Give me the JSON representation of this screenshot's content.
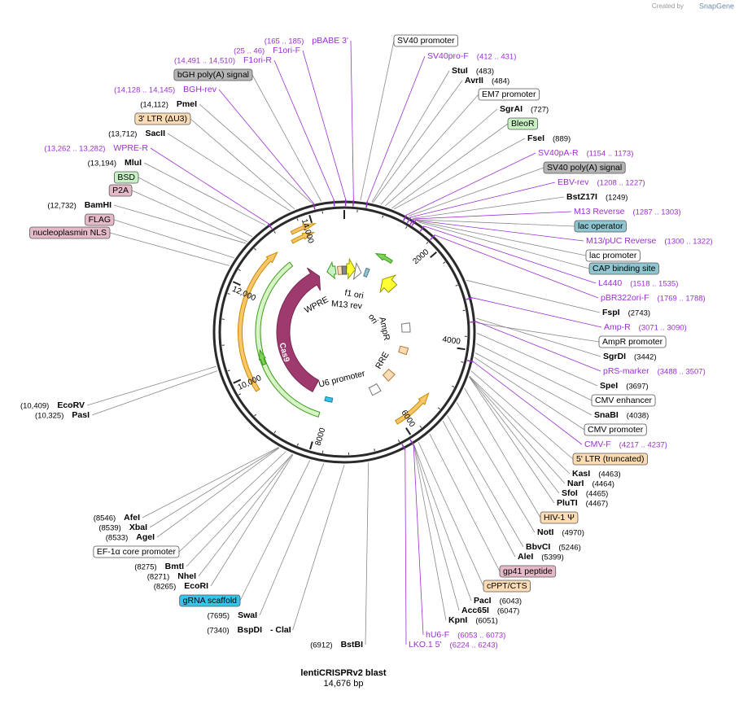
{
  "header": {
    "created_by": "Created by",
    "brand": "SnapGene"
  },
  "map": {
    "name": "lentiCRISPRv2 blast",
    "length": "14,676 bp",
    "ring_ticks": [
      "2000",
      "4000",
      "6000",
      "8000",
      "10,000",
      "12,000",
      "14,000"
    ],
    "inner_labels": [
      "f1 ori",
      "M13 rev",
      "WPRE",
      "AmpR",
      "ori",
      "RRE",
      "U6 promoter",
      "Cas9"
    ]
  },
  "right_labels": [
    {
      "name": "SV40 promoter",
      "kind": "feature",
      "color": "#ffffff"
    },
    {
      "name": "SV40pro-F",
      "location": "(412 .. 431)",
      "kind": "primer"
    },
    {
      "name": "StuI",
      "location": "(483)",
      "kind": "enzyme"
    },
    {
      "name": "AvrII",
      "location": "(484)",
      "kind": "enzyme"
    },
    {
      "name": "EM7 promoter",
      "kind": "feature",
      "color": "#ffffff"
    },
    {
      "name": "SgrAI",
      "location": "(727)",
      "kind": "enzyme"
    },
    {
      "name": "BleoR",
      "kind": "feature",
      "color": "#c9f2c4"
    },
    {
      "name": "FseI",
      "location": "(889)",
      "kind": "enzyme"
    },
    {
      "name": "SV40pA-R",
      "location": "(1154 .. 1173)",
      "kind": "primer"
    },
    {
      "name": "SV40 poly(A) signal",
      "kind": "feature",
      "color": "#b4b4b4"
    },
    {
      "name": "EBV-rev",
      "location": "(1208 .. 1227)",
      "kind": "primer"
    },
    {
      "name": "BstZ17I",
      "location": "(1249)",
      "kind": "enzyme"
    },
    {
      "name": "M13 Reverse",
      "location": "(1287 .. 1303)",
      "kind": "primer"
    },
    {
      "name": "lac operator",
      "kind": "feature",
      "color": "#8fc6d1"
    },
    {
      "name": "M13/pUC Reverse",
      "location": "(1300 .. 1322)",
      "kind": "primer"
    },
    {
      "name": "lac promoter",
      "kind": "feature",
      "color": "#ffffff"
    },
    {
      "name": "CAP binding site",
      "kind": "feature",
      "color": "#8fc6d1"
    },
    {
      "name": "L4440",
      "location": "(1518 .. 1535)",
      "kind": "primer"
    },
    {
      "name": "pBR322ori-F",
      "location": "(1769 .. 1788)",
      "kind": "primer"
    },
    {
      "name": "FspI",
      "location": "(2743)",
      "kind": "enzyme"
    },
    {
      "name": "Amp-R",
      "location": "(3071 .. 3090)",
      "kind": "primer"
    },
    {
      "name": "AmpR promoter",
      "kind": "feature",
      "color": "#ffffff"
    },
    {
      "name": "SgrDI",
      "location": "(3442)",
      "kind": "enzyme"
    },
    {
      "name": "pRS-marker",
      "location": "(3488 .. 3507)",
      "kind": "primer"
    },
    {
      "name": "SpeI",
      "location": "(3697)",
      "kind": "enzyme"
    },
    {
      "name": "CMV enhancer",
      "kind": "feature",
      "color": "#ffffff"
    },
    {
      "name": "SnaBI",
      "location": "(4038)",
      "kind": "enzyme"
    },
    {
      "name": "CMV promoter",
      "kind": "feature",
      "color": "#ffffff"
    },
    {
      "name": "CMV-F",
      "location": "(4217 .. 4237)",
      "kind": "primer"
    },
    {
      "name": "5' LTR (truncated)",
      "kind": "feature",
      "color": "#fcdcb4"
    },
    {
      "name": "KasI",
      "location": "(4463)",
      "kind": "enzyme"
    },
    {
      "name": "NarI",
      "location": "(4464)",
      "kind": "enzyme"
    },
    {
      "name": "SfoI",
      "location": "(4465)",
      "kind": "enzyme"
    },
    {
      "name": "PluTI",
      "location": "(4467)",
      "kind": "enzyme"
    },
    {
      "name": "HIV-1 Ψ",
      "kind": "feature",
      "color": "#fcdcb4"
    },
    {
      "name": "NotI",
      "location": "(4970)",
      "kind": "enzyme"
    },
    {
      "name": "BbvCI",
      "location": "(5246)",
      "kind": "enzyme"
    },
    {
      "name": "AleI",
      "location": "(5399)",
      "kind": "enzyme"
    },
    {
      "name": "gp41 peptide",
      "kind": "feature",
      "color": "#e6b9c9"
    },
    {
      "name": "cPPT/CTS",
      "kind": "feature",
      "color": "#fcdcb4"
    },
    {
      "name": "PacI",
      "location": "(6043)",
      "kind": "enzyme"
    },
    {
      "name": "Acc65I",
      "location": "(6047)",
      "kind": "enzyme"
    },
    {
      "name": "KpnI",
      "location": "(6051)",
      "kind": "enzyme"
    },
    {
      "name": "hU6-F",
      "location": "(6053 .. 6073)",
      "kind": "primer"
    },
    {
      "name": "LKO.1 5'",
      "location": "(6224 .. 6243)",
      "kind": "primer"
    }
  ],
  "left_labels": [
    {
      "name": "pBABE 3'",
      "location": "(165 .. 185)",
      "kind": "primer"
    },
    {
      "name": "F1ori-F",
      "location": "(25 .. 46)",
      "kind": "primer"
    },
    {
      "name": "F1ori-R",
      "location": "(14,491 .. 14,510)",
      "kind": "primer"
    },
    {
      "name": "bGH poly(A) signal",
      "kind": "feature",
      "color": "#b4b4b4"
    },
    {
      "name": "BGH-rev",
      "location": "(14,128 .. 14,145)",
      "kind": "primer"
    },
    {
      "name": "PmeI",
      "location": "(14,112)",
      "kind": "enzyme"
    },
    {
      "name": "3' LTR (ΔU3)",
      "kind": "feature",
      "color": "#fcdcb4"
    },
    {
      "name": "SacII",
      "location": "(13,712)",
      "kind": "enzyme"
    },
    {
      "name": "WPRE-R",
      "location": "(13,262 .. 13,282)",
      "kind": "primer"
    },
    {
      "name": "MluI",
      "location": "(13,194)",
      "kind": "enzyme"
    },
    {
      "name": "BSD",
      "kind": "feature",
      "color": "#c9f2c4"
    },
    {
      "name": "P2A",
      "kind": "feature",
      "color": "#e6b9c9"
    },
    {
      "name": "BamHI",
      "location": "(12,732)",
      "kind": "enzyme"
    },
    {
      "name": "FLAG",
      "kind": "feature",
      "color": "#e6b9c9"
    },
    {
      "name": "nucleoplasmin NLS",
      "kind": "feature",
      "color": "#e6b9c9"
    },
    {
      "name": "EcoRV",
      "location": "(10,409)",
      "kind": "enzyme"
    },
    {
      "name": "PasI",
      "location": "(10,325)",
      "kind": "enzyme"
    },
    {
      "name": "AfeI",
      "location": "(8546)",
      "kind": "enzyme"
    },
    {
      "name": "XbaI",
      "location": "(8539)",
      "kind": "enzyme"
    },
    {
      "name": "AgeI",
      "location": "(8533)",
      "kind": "enzyme"
    },
    {
      "name": "EF-1α core promoter",
      "kind": "feature",
      "color": "#ffffff"
    },
    {
      "name": "BmtI",
      "location": "(8275)",
      "kind": "enzyme"
    },
    {
      "name": "NheI",
      "location": "(8271)",
      "kind": "enzyme"
    },
    {
      "name": "EcoRI",
      "location": "(8265)",
      "kind": "enzyme"
    },
    {
      "name": "gRNA scaffold",
      "kind": "feature",
      "color": "#35c4ea"
    },
    {
      "name": "SwaI",
      "location": "(7695)",
      "kind": "enzyme"
    },
    {
      "name": "BspDI",
      "alias": "- ClaI",
      "location": "(7340)",
      "kind": "enzyme"
    },
    {
      "name": "BstBI",
      "location": "(6912)",
      "kind": "enzyme"
    }
  ]
}
